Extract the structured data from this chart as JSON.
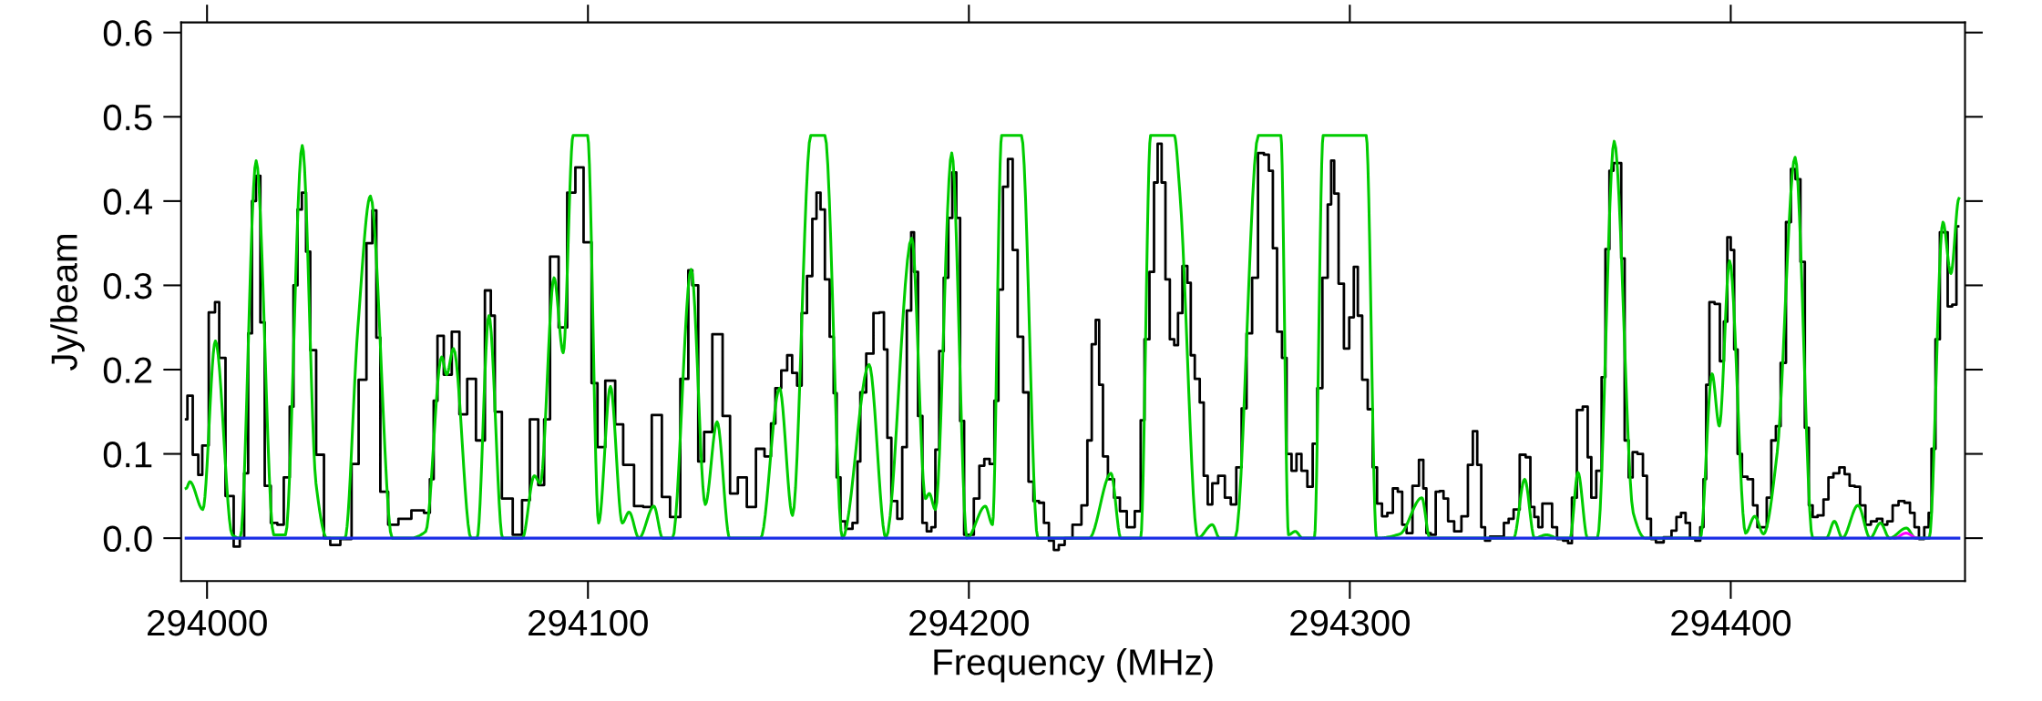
{
  "chart_data": {
    "type": "line",
    "xlabel": "Frequency (MHz)",
    "ylabel": "Jy/beam",
    "xlim": [
      293993.2,
      294461.5
    ],
    "ylim": [
      -0.051,
      0.612
    ],
    "xticks": [
      294000,
      294100,
      294200,
      294300,
      294400
    ],
    "yticks": [
      {
        "value": 0,
        "label": "0.0"
      },
      {
        "value": 0.1,
        "label": "0.1"
      },
      {
        "value": 0.2,
        "label": "0.2"
      },
      {
        "value": 0.3,
        "label": "0.3"
      },
      {
        "value": 0.4,
        "label": "0.4"
      },
      {
        "value": 0.5,
        "label": "0.5"
      },
      {
        "value": 0.6,
        "label": "0.6"
      }
    ],
    "grid": false,
    "legend": false,
    "series": [
      {
        "type": "step",
        "color": "#000000",
        "x": [
          293994.5,
          293995.2,
          293997.3,
          293998.1,
          293999.4,
          294001.5,
          294002.7,
          294003.7,
          294006.0,
          294008.0,
          294009.2,
          294010.3,
          294011.3,
          294012.3,
          294013.4,
          294014.6,
          294015.7,
          294017.8,
          294019.1,
          294021.2,
          294022.2,
          294023.2,
          294024.3,
          294025.5,
          294026.5,
          294027.7,
          294029.6,
          294031.8,
          294032.9,
          294037.1,
          294038.8,
          294040.8,
          294042.9,
          294043.9,
          294045.0,
          294046.0,
          294049.1,
          294051.4,
          294055.9,
          294058.0,
          294059.0,
          294060.0,
          294061.0,
          294063.3,
          294065.2,
          294067.3,
          294069.3,
          294071.9,
          294074.0,
          294075.0,
          294076.1,
          294078.7,
          294081.8,
          294083.6,
          294085.9,
          294088.0,
          294089.0,
          294091.1,
          294093.5,
          294095.6,
          294097.8,
          294099.9,
          294102.0,
          294103.0,
          294106.1,
          294108.2,
          294110.3,
          294113.9,
          294115.1,
          294118.4,
          294120.4,
          294122.7,
          294125.8,
          294126.9,
          294127.9,
          294130.0,
          294131.0,
          294134.3,
          294136.4,
          294138.2,
          294140.5,
          294142.9,
          294145.3,
          294147.4,
          294148.7,
          294149.7,
          294151.8,
          294152.8,
          294154.4,
          294155.4,
          294156.8,
          294158.2,
          294159.6,
          294160.4,
          294161.7,
          294162.7,
          294164.2,
          294164.8,
          294165.8,
          294166.8,
          294168.4,
          294170.5,
          294171.0,
          294172.0,
          294174.1,
          294175.8,
          294177.2,
          294178.2,
          294179.0,
          294180.3,
          294182.1,
          294182.9,
          294184.5,
          294185.2,
          294186.0,
          294187.3,
          294188.3,
          294189.6,
          294190.7,
          294191.7,
          294192.7,
          294194.1,
          294195.1,
          294196.2,
          294197.2,
          294198.2,
          294199.3,
          294200.5,
          294202.1,
          294203.4,
          294204.7,
          294206.2,
          294207.2,
          294208.3,
          294209.6,
          294210.9,
          294212.1,
          294213.5,
          294215.0,
          294216.3,
          294217.6,
          294219.2,
          294220.2,
          294221.8,
          294222.8,
          294224.4,
          294225.9,
          294228.5,
          294230.6,
          294231.6,
          294232.9,
          294233.7,
          294234.7,
          294235.7,
          294237.3,
          294238.9,
          294240.4,
          294242.5,
          294244.6,
          294245.6,
          294246.6,
          294248.2,
          294249.0,
          294250.1,
          294251.1,
          294252.1,
          294253.4,
          294254.4,
          294255.4,
          294256.7,
          294258.0,
          294258.5,
          294260.1,
          294261.1,
          294262.2,
          294263.2,
          294264.6,
          294266.3,
          294268.1,
          294269.4,
          294271.0,
          294272.2,
          294273.6,
          294275.1,
          294276.7,
          294278.2,
          294279.3,
          294280.3,
          294281.5,
          294282.9,
          294283.9,
          294285.5,
          294286.5,
          294288.1,
          294289.6,
          294290.9,
          294292.0,
          294293.6,
          294294.8,
          294295.4,
          294296.4,
          294297.7,
          294299.2,
          294300.5,
          294301.6,
          294302.6,
          294303.9,
          294305.5,
          294306.5,
          294307.8,
          294309.1,
          294310.6,
          294312.0,
          294313.2,
          294314.3,
          294315.5,
          294317.4,
          294318.9,
          294319.7,
          294320.5,
          294322.0,
          294323.1,
          294324.1,
          294325.1,
          294326.5,
          294328.3,
          294330.3,
          294331.7,
          294332.9,
          294334.0,
          294335.0,
          294336.0,
          294337.6,
          294339.7,
          294341.2,
          294342.2,
          294343.8,
          294345.4,
          294346.9,
          294347.9,
          294349.0,
          294350.0,
          294351.1,
          294352.6,
          294353.6,
          294355.2,
          294356.8,
          294357.8,
          294358.8,
          294360.4,
          294361.9,
          294363.0,
          294363.8,
          294365.6,
          294366.6,
          294367.6,
          294368.7,
          294369.7,
          294370.7,
          294371.8,
          294372.5,
          294373.9,
          294374.6,
          294376.4,
          294377.5,
          294378.5,
          294379.6,
          294381.1,
          294383.7,
          294385.2,
          294386.3,
          294387.6,
          294388.7,
          294389.9,
          294391.5,
          294392.5,
          294393.2,
          294393.9,
          294394.9,
          294396.6,
          294397.7,
          294398.7,
          294399.5,
          294400.5,
          294401.3,
          294402.3,
          294403.6,
          294405.2,
          294406.5,
          294407.5,
          294408.8,
          294410.1,
          294411.2,
          294412.5,
          294413.7,
          294415.3,
          294416.3,
          294417.7,
          294418.9,
          294420.0,
          294421.0,
          294422.0,
          294423.6,
          294425.1,
          294426.2,
          294427.7,
          294429.3,
          294430.5,
          294431.9,
          294433.2,
          294434.7,
          294436.0,
          294437.6,
          294439.1,
          294440.5,
          294441.7,
          294443.3,
          294444.8,
          294446.4,
          294447.7,
          294448.8,
          294450.0,
          294451.6,
          294452.3,
          294453.1,
          294454.4,
          294455.4,
          294456.4,
          294457.5,
          294458.8,
          294459.7
        ],
        "values": [
          0.141,
          0.169,
          0.099,
          0.075,
          0.11,
          0.268,
          0.28,
          0.214,
          0.05,
          -0.01,
          0.0,
          0.077,
          0.243,
          0.4,
          0.43,
          0.256,
          0.062,
          0.018,
          0.016,
          0.072,
          0.156,
          0.3,
          0.39,
          0.41,
          0.34,
          0.223,
          0.099,
          0.0,
          -0.008,
          -0.001,
          0.088,
          0.188,
          0.35,
          0.389,
          0.238,
          0.055,
          0.016,
          0.023,
          0.033,
          0.03,
          0.07,
          0.163,
          0.24,
          0.194,
          0.245,
          0.147,
          0.189,
          0.116,
          0.294,
          0.264,
          0.15,
          0.047,
          0.004,
          0.045,
          0.141,
          0.063,
          0.141,
          0.334,
          0.25,
          0.41,
          0.44,
          0.351,
          0.184,
          0.108,
          0.187,
          0.135,
          0.087,
          0.038,
          0.037,
          0.146,
          0.049,
          0.025,
          0.189,
          0.318,
          0.3,
          0.091,
          0.126,
          0.242,
          0.145,
          0.053,
          0.072,
          0.037,
          0.106,
          0.097,
          0.136,
          0.178,
          0.199,
          0.217,
          0.196,
          0.181,
          0.267,
          0.311,
          0.379,
          0.41,
          0.39,
          0.307,
          0.239,
          0.172,
          0.072,
          0.02,
          0.011,
          0.018,
          0.091,
          0.173,
          0.219,
          0.267,
          0.268,
          0.224,
          0.119,
          0.044,
          0.023,
          0.108,
          0.27,
          0.363,
          0.316,
          0.145,
          0.018,
          0.008,
          0.013,
          0.105,
          0.222,
          0.309,
          0.38,
          0.434,
          0.38,
          0.139,
          0.004,
          0.004,
          0.047,
          0.086,
          0.094,
          0.088,
          0.163,
          0.295,
          0.417,
          0.45,
          0.342,
          0.239,
          0.173,
          0.067,
          0.044,
          0.042,
          0.018,
          -0.003,
          -0.014,
          -0.008,
          0.0,
          0.016,
          0.039,
          0.116,
          0.23,
          0.259,
          0.182,
          0.097,
          0.07,
          0.048,
          0.032,
          0.013,
          0.032,
          0.14,
          0.236,
          0.316,
          0.422,
          0.468,
          0.422,
          0.307,
          0.236,
          0.229,
          0.267,
          0.323,
          0.303,
          0.217,
          0.189,
          0.161,
          0.074,
          0.04,
          0.065,
          0.074,
          0.048,
          0.04,
          0.084,
          0.154,
          0.243,
          0.309,
          0.457,
          0.455,
          0.436,
          0.344,
          0.245,
          0.214,
          0.1,
          0.08,
          0.1,
          0.08,
          0.061,
          0.112,
          0.178,
          0.309,
          0.396,
          0.448,
          0.409,
          0.302,
          0.225,
          0.262,
          0.322,
          0.264,
          0.188,
          0.153,
          0.084,
          0.041,
          0.026,
          0.03,
          0.059,
          0.055,
          0.016,
          0.006,
          0.062,
          0.093,
          0.059,
          0.006,
          0.004,
          0.055,
          0.056,
          0.047,
          0.02,
          0.008,
          0.026,
          0.087,
          0.127,
          0.087,
          0.013,
          -0.003,
          0.002,
          0.002,
          0.018,
          0.023,
          0.034,
          0.099,
          0.096,
          0.037,
          0.025,
          0.013,
          0.041,
          0.041,
          0.013,
          -0.001,
          -0.003,
          -0.006,
          0.048,
          0.152,
          0.156,
          0.096,
          0.048,
          0.08,
          0.191,
          0.343,
          0.436,
          0.445,
          0.445,
          0.332,
          0.116,
          0.072,
          0.102,
          0.1,
          0.074,
          0.023,
          -0.001,
          -0.005,
          0.001,
          0.009,
          0.025,
          0.03,
          0.018,
          0.0,
          -0.003,
          0.013,
          0.07,
          0.182,
          0.28,
          0.278,
          0.21,
          0.257,
          0.357,
          0.342,
          0.224,
          0.1,
          0.073,
          0.07,
          0.039,
          0.013,
          0.013,
          0.048,
          0.116,
          0.133,
          0.208,
          0.375,
          0.438,
          0.426,
          0.328,
          0.131,
          0.039,
          0.025,
          0.027,
          0.046,
          0.072,
          0.077,
          0.084,
          0.076,
          0.062,
          0.061,
          0.039,
          0.016,
          0.02,
          0.023,
          0.016,
          0.02,
          0.039,
          0.044,
          0.042,
          0.03,
          0.013,
          -0.001,
          0.013,
          0.03,
          0.106,
          0.236,
          0.363,
          0.363,
          0.275,
          0.277,
          0.37
        ]
      },
      {
        "type": "line",
        "color": "#00cc00",
        "x": [
          293994.5,
          293995.5,
          293998.9,
          294002.2,
          294006.6,
          294008.7,
          294012.9,
          294017.5,
          294020.6,
          294025.0,
          294028.6,
          294031.5,
          294036.2,
          294039.6,
          294042.9,
          294048.6,
          294053.3,
          294057.4,
          294061.6,
          294062.9,
          294064.7,
          294069.3,
          294070.9,
          294074.0,
          294077.6,
          294082.8,
          294085.9,
          294087.5,
          294091.1,
          294093.5,
          294096.1,
          294099.9,
          294102.8,
          294105.9,
          294109.0,
          294110.8,
          294113.4,
          294117.3,
          294119.6,
          294122.2,
          294127.1,
          294130.8,
          294133.9,
          294137.2,
          294145.3,
          294150.3,
          294153.7,
          294158.5,
          294162.2,
          294166.8,
          294173.8,
          294178.2,
          294185.0,
          294188.6,
          294189.6,
          294191.2,
          294195.5,
          294199.5,
          294204.3,
          294206.2,
          294208.6,
          294213.8,
          294218.1,
          294231.6,
          294237.3,
          294239.9,
          294245.1,
          294247.7,
          294253.9,
          294255.4,
          294260.1,
          294263.9,
          294265.8,
          294269.9,
          294276.0,
          294281.9,
          294283.9,
          294285.7,
          294287.6,
          294290.7,
          294293.0,
          294304.3,
          294307.0,
          294313.2,
          294318.9,
          294321.0,
          294343.0,
          294345.9,
          294348.5,
          294351.6,
          294354.7,
          294357.8,
          294359.9,
          294362.4,
          294365.0,
          294369.4,
          294374.4,
          294377.5,
          294392.0,
          294395.1,
          294397.0,
          294399.7,
          294403.9,
          294406.3,
          294408.6,
          294412.2,
          294416.9,
          294421.5,
          294425.1,
          294427.2,
          294429.3,
          294433.4,
          294436.6,
          294439.3,
          294441.7,
          294446.1,
          294448.5,
          294452.1,
          294455.7,
          294457.8,
          294459.9
        ],
        "values": [
          0.059,
          0.067,
          0.034,
          0.234,
          0.004,
          0.0,
          0.448,
          0.004,
          0.004,
          0.466,
          0.065,
          0.0,
          0.0,
          0.25,
          0.406,
          0.0,
          0.0,
          0.008,
          0.215,
          0.194,
          0.225,
          0.0,
          0.0,
          0.264,
          0.0,
          0.0,
          0.074,
          0.065,
          0.309,
          0.22,
          0.478,
          0.478,
          0.018,
          0.18,
          0.018,
          0.031,
          0.0,
          0.038,
          0.0,
          0.0,
          0.319,
          0.04,
          0.138,
          0.0,
          0.0,
          0.178,
          0.027,
          0.478,
          0.478,
          0.0,
          0.206,
          0.0,
          0.356,
          0.047,
          0.053,
          0.034,
          0.457,
          0.0,
          0.038,
          0.016,
          0.478,
          0.478,
          0.0,
          0.0,
          0.077,
          0.0,
          0.0,
          0.478,
          0.478,
          0.409,
          0.0,
          0.016,
          0.0,
          0.0,
          0.478,
          0.478,
          0.004,
          0.008,
          0.0,
          0.0,
          0.478,
          0.478,
          0.0,
          0.005,
          0.048,
          0.0,
          0.0,
          0.07,
          0.0,
          0.004,
          0.0,
          0.0,
          0.078,
          0.0,
          0.0,
          0.471,
          0.03,
          0.0,
          0.0,
          0.195,
          0.133,
          0.329,
          0.006,
          0.026,
          0.005,
          0.102,
          0.452,
          0.0,
          0.0,
          0.02,
          0.0,
          0.039,
          0.0,
          0.018,
          0.0,
          0.012,
          0.0,
          0.0,
          0.375,
          0.314,
          0.403
        ]
      },
      {
        "type": "line",
        "color": "#ff00ff",
        "x": [
          294443.0,
          294446.0,
          294449.0
        ],
        "values": [
          0.0,
          0.006,
          0.0
        ]
      },
      {
        "type": "line",
        "color": "#1a2ee6",
        "x": [
          293994.5,
          294459.9
        ],
        "values": [
          0.0,
          0.0
        ]
      }
    ]
  }
}
